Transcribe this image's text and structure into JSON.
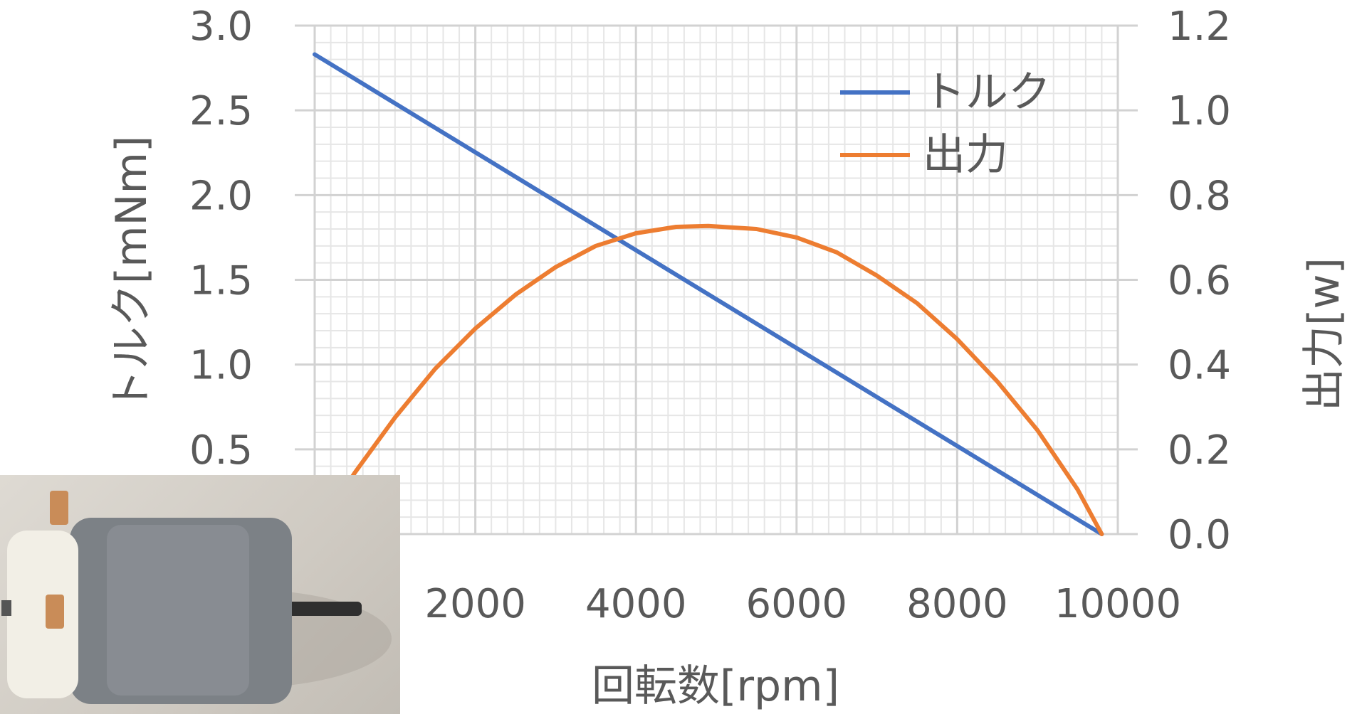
{
  "chart_data": {
    "type": "line",
    "xlabel": "回転数[rpm]",
    "ylabel_left": "トルク[mNm]",
    "ylabel_right": "出力[w]",
    "xlim": [
      0,
      10000
    ],
    "xticks": [
      2000,
      4000,
      6000,
      8000,
      10000
    ],
    "xtick_labels": [
      "2000",
      "4000",
      "6000",
      "8000",
      "10000"
    ],
    "ylim_left": [
      0,
      3.0
    ],
    "yticks_left": [
      "0.5",
      "1.0",
      "1.5",
      "2.0",
      "2.5",
      "3.0"
    ],
    "ylim_right": [
      0,
      1.2
    ],
    "yticks_right": [
      "0.0",
      "0.2",
      "0.4",
      "0.6",
      "0.8",
      "1.0",
      "1.2"
    ],
    "grid": true,
    "legend_position": "top-right",
    "series": [
      {
        "name": "トルク",
        "axis": "left",
        "color": "#4472C4",
        "x": [
          0,
          9800
        ],
        "y": [
          2.83,
          0.0
        ]
      },
      {
        "name": "出力",
        "axis": "right",
        "color": "#ED7D31",
        "x": [
          0,
          500,
          1000,
          1500,
          2000,
          2500,
          3000,
          3500,
          4000,
          4500,
          4900,
          5500,
          6000,
          6500,
          7000,
          7500,
          8000,
          8500,
          9000,
          9500,
          9800
        ],
        "y": [
          0.0,
          0.145,
          0.275,
          0.39,
          0.485,
          0.565,
          0.63,
          0.68,
          0.71,
          0.725,
          0.727,
          0.72,
          0.7,
          0.665,
          0.61,
          0.545,
          0.46,
          0.36,
          0.245,
          0.105,
          0.0
        ]
      }
    ]
  },
  "photo": {
    "icon": "dc-motor-photo"
  }
}
